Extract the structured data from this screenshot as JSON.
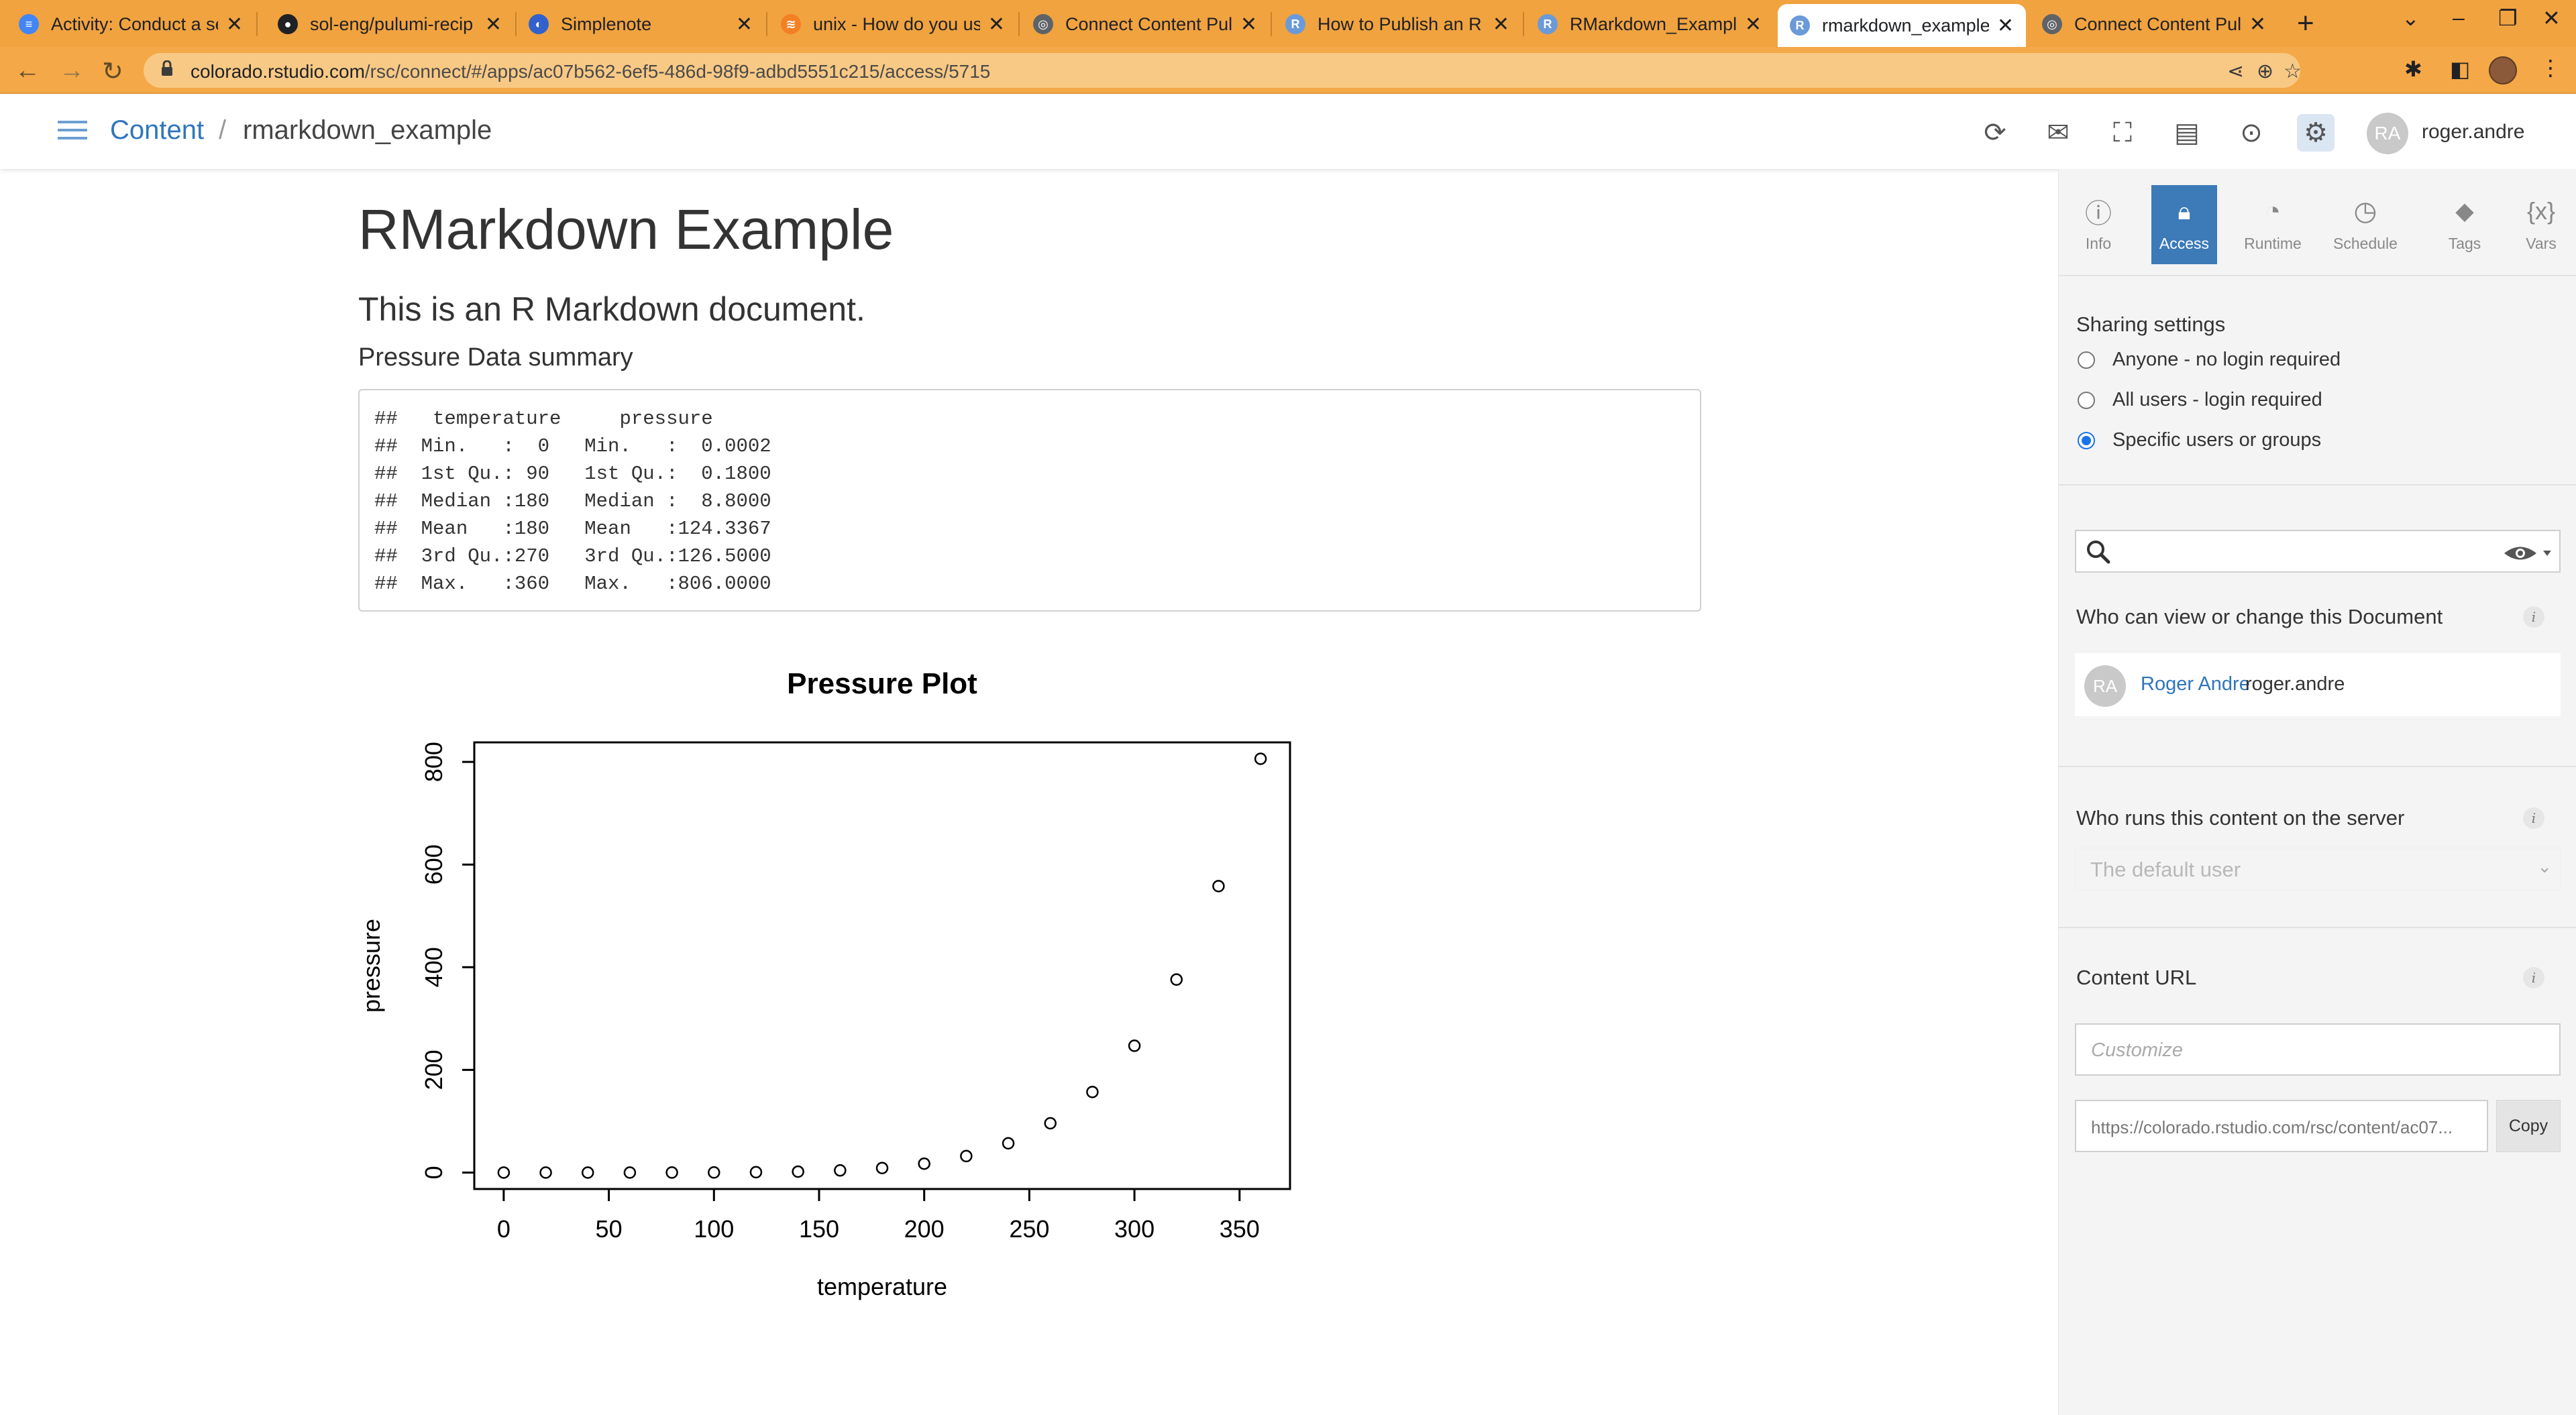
{
  "browser": {
    "tabs": [
      {
        "title": "Activity: Conduct a se",
        "favicon": "docs-icon",
        "color": "#4285f4",
        "glyph": "≡"
      },
      {
        "title": "sol-eng/pulumi-recip",
        "favicon": "github-icon",
        "color": "#202124",
        "glyph": "●"
      },
      {
        "title": "Simplenote",
        "favicon": "simplenote-icon",
        "color": "#3361cc",
        "glyph": "◐"
      },
      {
        "title": "unix - How do you us",
        "favicon": "stackoverflow-icon",
        "color": "#f48024",
        "glyph": "≋"
      },
      {
        "title": "Connect Content Pul",
        "favicon": "globe-icon",
        "color": "#5f6368",
        "glyph": "◎"
      },
      {
        "title": "How to Publish an R",
        "favicon": "r-icon",
        "color": "#6a9ad8",
        "glyph": "R"
      },
      {
        "title": "RMarkdown_Exampl",
        "favicon": "r-icon",
        "color": "#6a9ad8",
        "glyph": "R"
      },
      {
        "title": "rmarkdown_example",
        "favicon": "r-icon",
        "color": "#6a9ad8",
        "glyph": "R",
        "active": true
      },
      {
        "title": "Connect Content Pul",
        "favicon": "globe-icon",
        "color": "#5f6368",
        "glyph": "◎"
      }
    ],
    "new_tab_label": "+",
    "url_host": "colorado.rstudio.com",
    "url_path": "/rsc/connect/#/apps/ac07b562-6ef5-486d-98f9-adbd5551c215/access/5715"
  },
  "header": {
    "breadcrumb_root": "Content",
    "breadcrumb_sep": "/",
    "breadcrumb_current": "rmarkdown_example",
    "avatar_initials": "RA",
    "username": "roger.andre"
  },
  "document": {
    "title": "RMarkdown Example",
    "subtitle": "This is an R Markdown document.",
    "section": "Pressure Data summary",
    "code_lines": [
      "##   temperature     pressure     ",
      "##  Min.   :  0   Min.   :  0.0002  ",
      "##  1st Qu.: 90   1st Qu.:  0.1800  ",
      "##  Median :180   Median :  8.8000  ",
      "##  Mean   :180   Mean   :124.3367  ",
      "##  3rd Qu.:270   3rd Qu.:126.5000  ",
      "##  Max.   :360   Max.   :806.0000  "
    ]
  },
  "chart_data": {
    "type": "scatter",
    "title": "Pressure Plot",
    "xlabel": "temperature",
    "ylabel": "pressure",
    "x": [
      0,
      20,
      40,
      60,
      80,
      100,
      120,
      140,
      160,
      180,
      200,
      220,
      240,
      260,
      280,
      300,
      320,
      340,
      360
    ],
    "y": [
      0.0002,
      0.0012,
      0.006,
      0.03,
      0.09,
      0.27,
      0.75,
      1.85,
      4.2,
      8.8,
      17.3,
      32.1,
      57,
      96,
      157,
      247,
      376,
      558,
      806
    ],
    "xlim": [
      -14,
      374
    ],
    "ylim": [
      -32,
      838
    ],
    "xticks": [
      0,
      50,
      100,
      150,
      200,
      250,
      300,
      350
    ],
    "yticks": [
      0,
      200,
      400,
      600,
      800
    ],
    "marker": "open-circle",
    "grid": false
  },
  "panel": {
    "tabs": [
      {
        "label": "Info",
        "icon": "info-icon",
        "glyph": "ⓘ"
      },
      {
        "label": "Access",
        "icon": "lock-icon",
        "glyph": "🔒︎",
        "active": true
      },
      {
        "label": "Runtime",
        "icon": "gauge-icon",
        "glyph": "◔"
      },
      {
        "label": "Schedule",
        "icon": "clock-icon",
        "glyph": "◷"
      },
      {
        "label": "Tags",
        "icon": "tag-icon",
        "glyph": "⬥"
      },
      {
        "label": "Vars",
        "icon": "variables-icon",
        "glyph": "{x}"
      }
    ],
    "sharing_title": "Sharing settings",
    "sharing_options": [
      {
        "label": "Anyone - no login required",
        "selected": false
      },
      {
        "label": "All users - login required",
        "selected": false
      },
      {
        "label": "Specific users or groups",
        "selected": true
      }
    ],
    "search_value": "",
    "who_can_view_title": "Who can view or change this Document",
    "user": {
      "initials": "RA",
      "name": "Roger Andre",
      "login": "roger.andre"
    },
    "who_runs_title": "Who runs this content on the server",
    "runs_as_value": "The default user",
    "content_url_title": "Content URL",
    "customize_placeholder": "Customize",
    "content_url_value": "https://colorado.rstudio.com/rsc/content/ac07...",
    "copy_label": "Copy"
  }
}
